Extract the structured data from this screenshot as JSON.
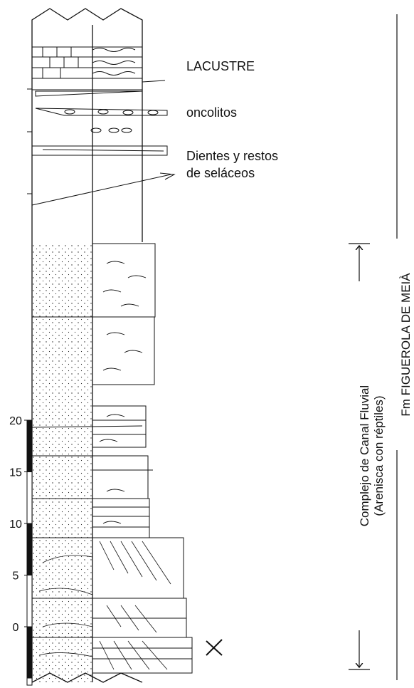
{
  "labels": {
    "lacustre": "LACUSTRE",
    "oncolitos": "oncolitos",
    "dientes": [
      "Dientes y restos",
      "de seláceos"
    ]
  },
  "units": {
    "canal": [
      "Complejo de Canal Fluvial",
      "(Arenisca con réptiles)"
    ],
    "formation": "Fm FIGUEROLA DE MEIÀ"
  },
  "scale": {
    "ticks": [
      20,
      15,
      10,
      5,
      0
    ]
  }
}
